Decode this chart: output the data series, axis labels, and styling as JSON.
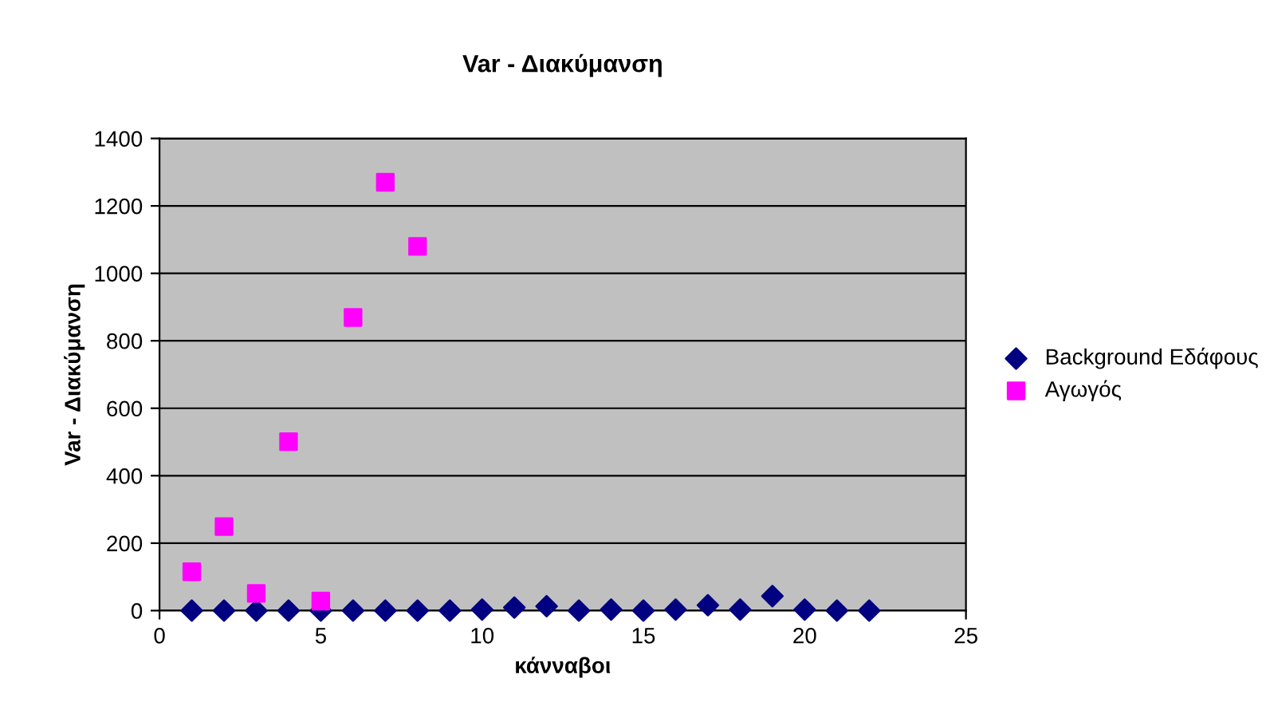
{
  "chart_data": {
    "type": "scatter",
    "title": "Var - Διακύμανση",
    "xlabel": "κάνναβοι",
    "ylabel": "Var - Διακύμανση",
    "xlim": [
      0,
      25
    ],
    "xticks": [
      0,
      5,
      10,
      15,
      20,
      25
    ],
    "ylim": [
      0,
      1400
    ],
    "yticks": [
      0,
      200,
      400,
      600,
      800,
      1000,
      1200,
      1400
    ],
    "grid": "y",
    "legend": "right",
    "series": [
      {
        "name": "Background Εδάφους",
        "color": "#000080",
        "marker": "diamond",
        "x": [
          1,
          2,
          3,
          4,
          5,
          6,
          7,
          8,
          9,
          10,
          11,
          12,
          13,
          14,
          15,
          16,
          17,
          18,
          19,
          20,
          21,
          22
        ],
        "values": [
          0,
          0,
          0,
          0,
          0,
          0,
          0,
          0,
          0,
          3,
          9,
          13,
          0,
          3,
          0,
          3,
          16,
          3,
          43,
          3,
          0,
          0
        ]
      },
      {
        "name": "Αγωγός",
        "color": "#ff00ff",
        "marker": "square",
        "x": [
          1,
          2,
          3,
          4,
          5,
          6,
          7,
          8
        ],
        "values": [
          115,
          249,
          51,
          501,
          28,
          869,
          1270,
          1080
        ]
      }
    ]
  }
}
